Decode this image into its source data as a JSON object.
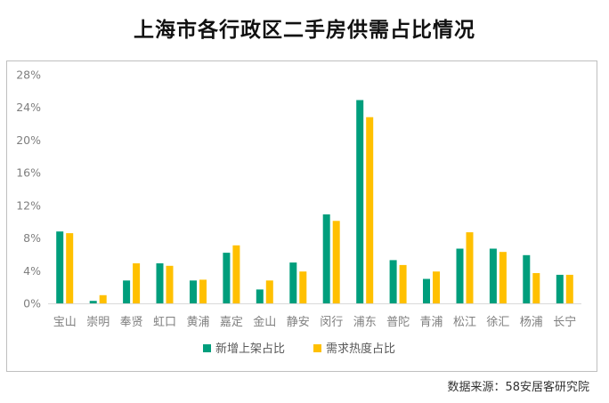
{
  "title": "上海市各行政区二手房供需占比情况",
  "source": "数据来源：58安居客研究院",
  "colors": {
    "series1": "#009E7C",
    "series2": "#FFC000",
    "axis_text": "#7f7f7f",
    "grid": "#d9d9d9"
  },
  "chart_data": {
    "type": "bar",
    "title": "上海市各行政区二手房供需占比情况",
    "xlabel": "",
    "ylabel": "",
    "ylim": [
      0,
      28
    ],
    "yticks": [
      "0%",
      "4%",
      "8%",
      "12%",
      "16%",
      "20%",
      "24%",
      "28%"
    ],
    "grid": false,
    "legend_position": "bottom",
    "categories": [
      "宝山",
      "崇明",
      "奉贤",
      "虹口",
      "黄浦",
      "嘉定",
      "金山",
      "静安",
      "闵行",
      "浦东",
      "普陀",
      "青浦",
      "松江",
      "徐汇",
      "杨浦",
      "长宁"
    ],
    "series": [
      {
        "name": "新增上架占比",
        "values": [
          8.8,
          0.3,
          2.8,
          4.9,
          2.8,
          6.2,
          1.7,
          5.0,
          10.9,
          24.9,
          5.3,
          3.0,
          6.7,
          6.7,
          5.9,
          3.5
        ]
      },
      {
        "name": "需求热度占比",
        "values": [
          8.6,
          1.0,
          4.9,
          4.6,
          2.9,
          7.1,
          2.8,
          3.9,
          10.1,
          22.8,
          4.7,
          3.9,
          8.7,
          6.3,
          3.7,
          3.5
        ]
      }
    ]
  }
}
